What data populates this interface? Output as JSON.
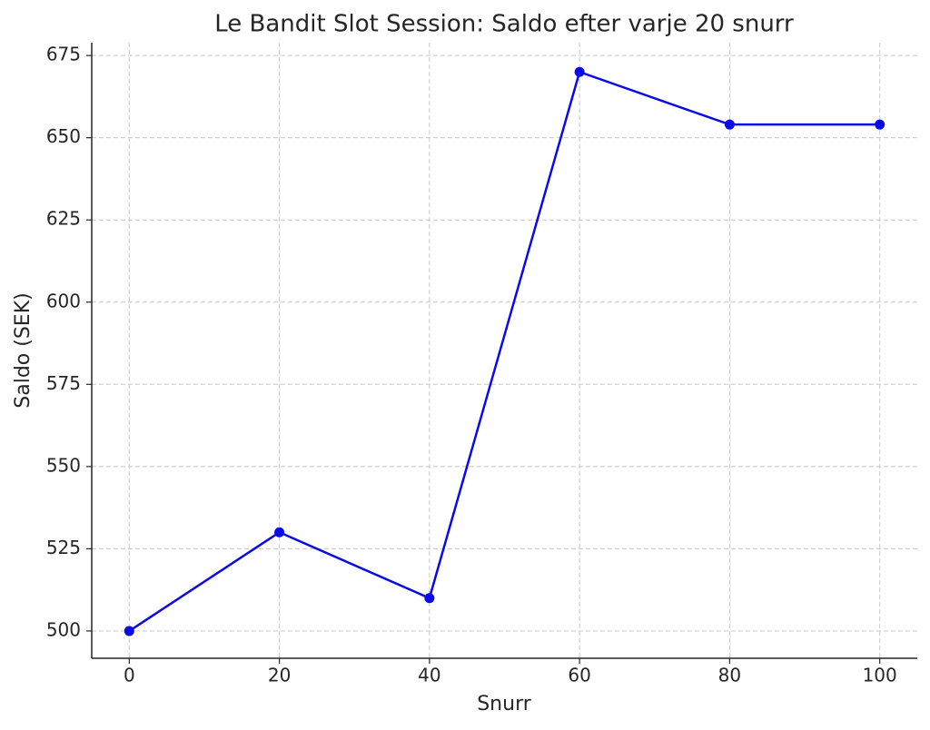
{
  "chart_data": {
    "type": "line",
    "title": "Le Bandit Slot Session: Saldo efter varje 20 snurr",
    "x_label": "Snurr",
    "y_label": "Saldo (SEK)",
    "x": [
      0,
      20,
      40,
      60,
      80,
      100
    ],
    "series": [
      {
        "name": "Saldo",
        "color": "#0a0ae6",
        "values": [
          500,
          530,
          510,
          670,
          654,
          654
        ]
      }
    ],
    "xlim": [
      -5,
      105
    ],
    "xticks": [
      0,
      20,
      40,
      60,
      80,
      100
    ],
    "ylim": [
      491.7,
      678.9
    ],
    "yticks": [
      500,
      525,
      550,
      575,
      600,
      625,
      650,
      675
    ],
    "grid": true,
    "markers": true
  }
}
